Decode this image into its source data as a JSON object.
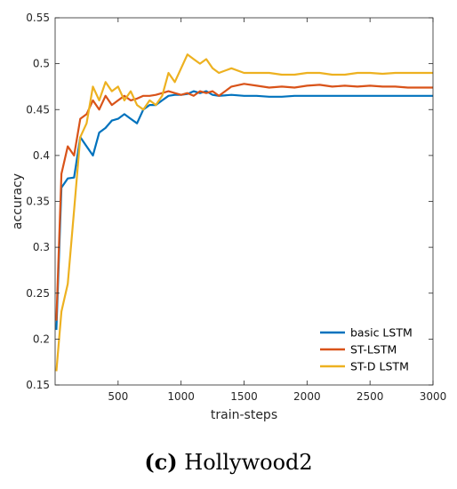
{
  "caption": {
    "letter": "(c)",
    "text": "Hollywood2"
  },
  "chart_data": {
    "type": "line",
    "title": "",
    "xlabel": "train-steps",
    "ylabel": "accuracy",
    "xlim": [
      0,
      3000
    ],
    "ylim": [
      0.15,
      0.55
    ],
    "xticks": [
      500,
      1000,
      1500,
      2000,
      2500,
      3000
    ],
    "yticks": [
      0.15,
      0.2,
      0.25,
      0.3,
      0.35,
      0.4,
      0.45,
      0.5,
      0.55
    ],
    "grid": false,
    "legend": "bottom-right",
    "x": [
      10,
      50,
      100,
      150,
      200,
      250,
      300,
      350,
      400,
      450,
      500,
      550,
      600,
      650,
      700,
      750,
      800,
      850,
      900,
      950,
      1000,
      1050,
      1100,
      1150,
      1200,
      1250,
      1300,
      1400,
      1500,
      1600,
      1700,
      1800,
      1900,
      2000,
      2100,
      2200,
      2300,
      2400,
      2500,
      2600,
      2700,
      2800,
      2900,
      3000
    ],
    "series": [
      {
        "name": "basic LSTM",
        "color": "#0072BD",
        "values": [
          0.21,
          0.365,
          0.375,
          0.376,
          0.42,
          0.41,
          0.4,
          0.425,
          0.43,
          0.438,
          0.44,
          0.445,
          0.44,
          0.435,
          0.45,
          0.455,
          0.455,
          0.46,
          0.465,
          0.466,
          0.466,
          0.467,
          0.47,
          0.468,
          0.47,
          0.466,
          0.465,
          0.466,
          0.465,
          0.465,
          0.464,
          0.464,
          0.465,
          0.465,
          0.465,
          0.465,
          0.465,
          0.465,
          0.465,
          0.465,
          0.465,
          0.465,
          0.465,
          0.465
        ]
      },
      {
        "name": "ST-LSTM",
        "color": "#D95319",
        "values": [
          0.22,
          0.38,
          0.41,
          0.4,
          0.44,
          0.445,
          0.46,
          0.45,
          0.465,
          0.455,
          0.46,
          0.465,
          0.46,
          0.462,
          0.465,
          0.465,
          0.466,
          0.468,
          0.47,
          0.468,
          0.466,
          0.468,
          0.465,
          0.47,
          0.468,
          0.47,
          0.465,
          0.475,
          0.478,
          0.476,
          0.474,
          0.475,
          0.474,
          0.476,
          0.477,
          0.475,
          0.476,
          0.475,
          0.476,
          0.475,
          0.475,
          0.474,
          0.474,
          0.474
        ]
      },
      {
        "name": "ST-D LSTM",
        "color": "#EDB120",
        "values": [
          0.165,
          0.23,
          0.26,
          0.34,
          0.42,
          0.435,
          0.475,
          0.46,
          0.48,
          0.47,
          0.475,
          0.46,
          0.47,
          0.455,
          0.45,
          0.46,
          0.455,
          0.465,
          0.49,
          0.48,
          0.495,
          0.51,
          0.505,
          0.5,
          0.505,
          0.495,
          0.49,
          0.495,
          0.49,
          0.49,
          0.49,
          0.488,
          0.488,
          0.49,
          0.49,
          0.488,
          0.488,
          0.49,
          0.49,
          0.489,
          0.49,
          0.49,
          0.49,
          0.49
        ]
      }
    ]
  }
}
